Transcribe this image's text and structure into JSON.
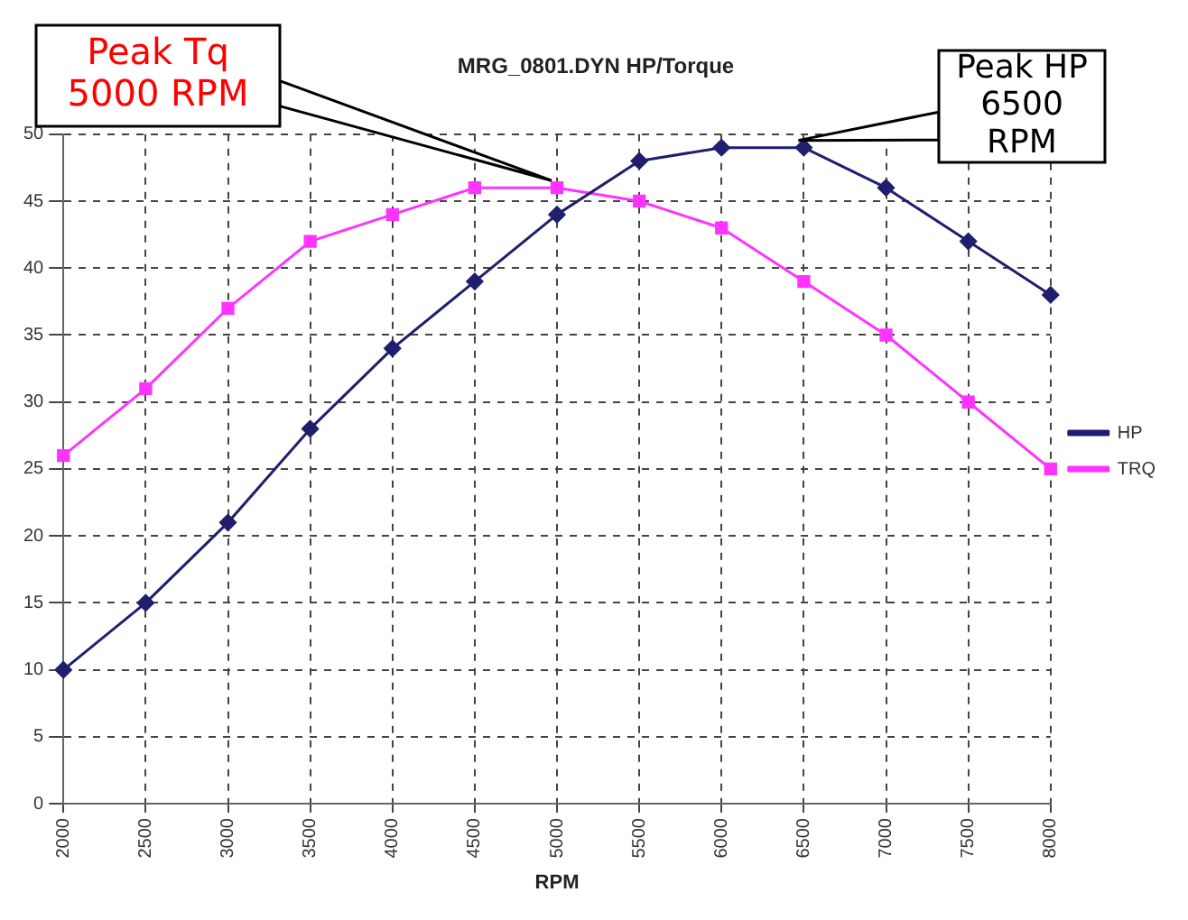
{
  "chart_data": {
    "type": "line",
    "title": "MRG_0801.DYN HP/Torque",
    "xlabel": "RPM",
    "categories": [
      "2000",
      "2500",
      "3000",
      "3500",
      "4000",
      "4500",
      "5000",
      "5500",
      "6000",
      "6500",
      "7000",
      "7500",
      "8000"
    ],
    "series": [
      {
        "name": "HP",
        "color": "#1f1f6e",
        "marker": "diamond",
        "values": [
          10,
          15,
          21,
          28,
          34,
          39,
          44,
          48,
          49,
          49,
          46,
          42,
          38
        ]
      },
      {
        "name": "TRQ",
        "color": "#ff33ff",
        "marker": "square",
        "values": [
          26,
          31,
          37,
          42,
          44,
          46,
          46,
          45,
          43,
          39,
          35,
          30,
          25
        ]
      }
    ],
    "ylim": [
      0,
      50
    ],
    "yticks": [
      0,
      5,
      10,
      15,
      20,
      25,
      30,
      35,
      40,
      45,
      50
    ],
    "grid": true,
    "line_style": "solid",
    "legend": "right",
    "annotations": [
      {
        "text": "Peak Tq\n5000 RPM",
        "x": "5000",
        "y": 46
      },
      {
        "text": "Peak HP\n6500\nRPM",
        "x": "6500",
        "y": 49
      }
    ]
  }
}
